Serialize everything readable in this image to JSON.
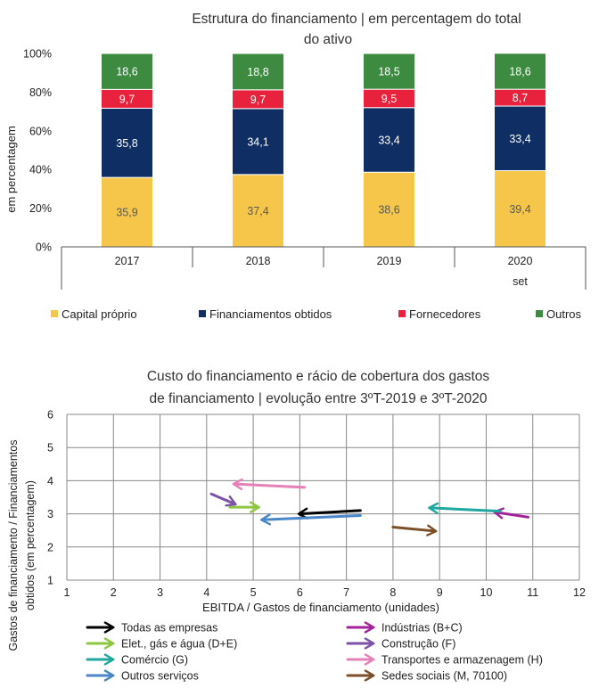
{
  "colors": {
    "capital": "#F5C64A",
    "financiamentos": "#0E2E64",
    "fornecedores": "#E8213C",
    "outros": "#3D8B41",
    "grid": "#888888",
    "axis_text": "#222222"
  },
  "chart_data": [
    {
      "type": "bar",
      "stacked": true,
      "title": "Estrutura do financiamento | em percentagem do total do ativo",
      "title_lines": [
        "Estrutura do financiamento | em percentagem do total",
        "do ativo"
      ],
      "ylabel": "em percentagem",
      "ylim": [
        0,
        100
      ],
      "yticks": [
        "0%",
        "20%",
        "40%",
        "60%",
        "80%",
        "100%"
      ],
      "categories": [
        "2017",
        "2018",
        "2019",
        "2020"
      ],
      "category_sublabels": [
        "",
        "",
        "",
        "set"
      ],
      "legend_position": "bottom",
      "series": [
        {
          "name": "Capital próprio",
          "color_key": "capital",
          "values": [
            35.9,
            37.4,
            38.6,
            39.4
          ],
          "labels": [
            "35,9",
            "37,4",
            "38,6",
            "39,4"
          ]
        },
        {
          "name": "Financiamentos obtidos",
          "color_key": "financiamentos",
          "values": [
            35.8,
            34.1,
            33.4,
            33.4
          ],
          "labels": [
            "35,8",
            "34,1",
            "33,4",
            "33,4"
          ]
        },
        {
          "name": "Fornecedores",
          "color_key": "fornecedores",
          "values": [
            9.7,
            9.7,
            9.5,
            8.7
          ],
          "labels": [
            "9,7",
            "9,7",
            "9,5",
            "8,7"
          ]
        },
        {
          "name": "Outros",
          "color_key": "outros",
          "values": [
            18.6,
            18.8,
            18.5,
            18.6
          ],
          "labels": [
            "18,6",
            "18,8",
            "18,5",
            "18,6"
          ]
        }
      ]
    },
    {
      "type": "scatter",
      "subtype": "arrows",
      "title": "Custo do financiamento e rácio de cobertura dos gastos de financiamento | evolução entre 3ºT-2019 e 3ºT-2020",
      "title_lines": [
        "Custo do financiamento e rácio de cobertura dos gastos",
        "de financiamento | evolução entre 3ºT-2019 e 3ºT-2020"
      ],
      "xlabel": "EBITDA / Gastos de financiamento (unidades)",
      "ylabel_lines": [
        "Gastos de financiamento / Financiamentos",
        "obtidos (em percentagem)"
      ],
      "xlim": [
        1,
        12
      ],
      "ylim": [
        1,
        6
      ],
      "xticks": [
        "1",
        "2",
        "3",
        "4",
        "5",
        "6",
        "7",
        "8",
        "9",
        "10",
        "11",
        "12"
      ],
      "yticks": [
        "1",
        "2",
        "3",
        "4",
        "5",
        "6"
      ],
      "grid": true,
      "legend_position": "bottom",
      "series": [
        {
          "name": "Todas as empresas",
          "color": "#000000",
          "from": [
            7.3,
            3.1
          ],
          "to": [
            6.0,
            3.0
          ]
        },
        {
          "name": "Indústrias (B+C)",
          "color": "#A3229A",
          "from": [
            10.9,
            2.9
          ],
          "to": [
            10.2,
            3.05
          ]
        },
        {
          "name": "Elet., gás e água (D+E)",
          "color": "#8DC63F",
          "from": [
            4.5,
            3.2
          ],
          "to": [
            5.1,
            3.2
          ]
        },
        {
          "name": "Construção (F)",
          "color": "#7B52A8",
          "from": [
            4.1,
            3.6
          ],
          "to": [
            4.6,
            3.3
          ]
        },
        {
          "name": "Comércio (G)",
          "color": "#20A8A0",
          "from": [
            10.3,
            3.08
          ],
          "to": [
            8.8,
            3.18
          ]
        },
        {
          "name": "Transportes e armazenagem (H)",
          "color": "#E680B8",
          "from": [
            6.1,
            3.8
          ],
          "to": [
            4.6,
            3.9
          ]
        },
        {
          "name": "Outros serviços",
          "color": "#4A86C8",
          "from": [
            7.3,
            2.95
          ],
          "to": [
            5.2,
            2.82
          ]
        },
        {
          "name": "Sedes sociais (M, 70100)",
          "color": "#7B4F28",
          "from": [
            8.0,
            2.6
          ],
          "to": [
            8.9,
            2.48
          ]
        }
      ]
    }
  ]
}
